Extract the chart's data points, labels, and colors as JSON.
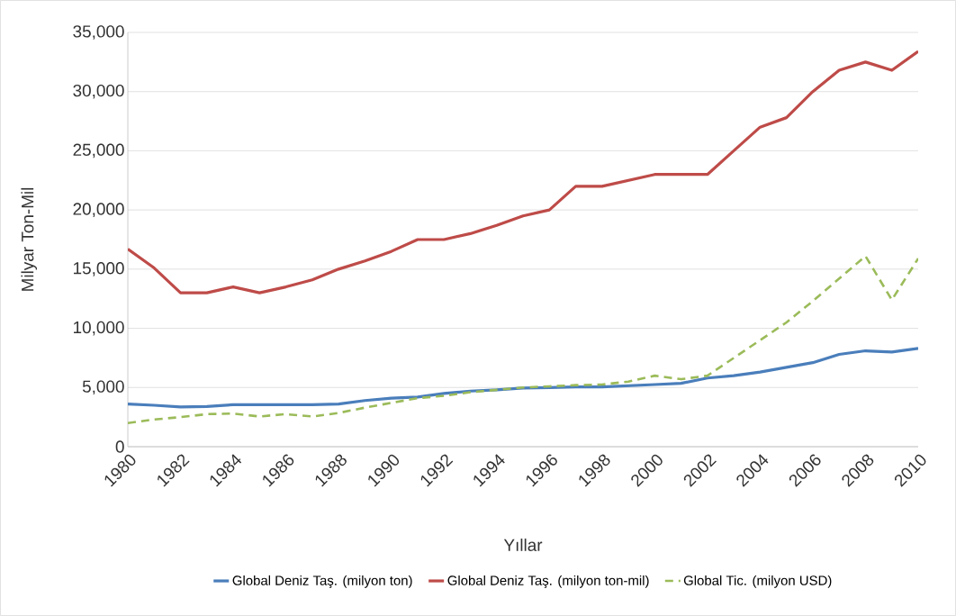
{
  "chart_data": {
    "type": "line",
    "xlabel": "Yıllar",
    "ylabel": "Milyar Ton-Mil",
    "x": [
      1980,
      1981,
      1982,
      1983,
      1984,
      1985,
      1986,
      1987,
      1988,
      1989,
      1990,
      1991,
      1992,
      1993,
      1994,
      1995,
      1996,
      1997,
      1998,
      1999,
      2000,
      2001,
      2002,
      2003,
      2004,
      2005,
      2006,
      2007,
      2008,
      2009,
      2010
    ],
    "series": [
      {
        "name": "Global Deniz Taş. (milyon ton)",
        "color": "#4a7ebb",
        "line_style": "solid",
        "values": [
          3600,
          3500,
          3350,
          3400,
          3550,
          3550,
          3550,
          3550,
          3600,
          3900,
          4100,
          4200,
          4500,
          4700,
          4800,
          4950,
          5000,
          5050,
          5050,
          5150,
          5250,
          5350,
          5800,
          6000,
          6300,
          6700,
          7100,
          7800,
          8100,
          8000,
          8300
        ]
      },
      {
        "name": "Global Deniz Taş. (milyon ton-mil)",
        "color": "#be4b48",
        "line_style": "solid",
        "values": [
          16700,
          15100,
          13000,
          13000,
          13500,
          13000,
          13500,
          14100,
          15000,
          15700,
          16500,
          17500,
          17500,
          18000,
          18700,
          19500,
          20000,
          22000,
          22000,
          22500,
          23000,
          23000,
          23000,
          25000,
          27000,
          27800,
          30000,
          31800,
          32500,
          31800,
          33400
        ]
      },
      {
        "name": "Global Tic. (milyon USD)",
        "color": "#9bbb59",
        "line_style": "dashed",
        "values": [
          2000,
          2300,
          2500,
          2750,
          2800,
          2550,
          2750,
          2550,
          2850,
          3300,
          3700,
          4100,
          4300,
          4600,
          4800,
          5000,
          5100,
          5200,
          5250,
          5500,
          6000,
          5700,
          6000,
          7500,
          9000,
          10500,
          12300,
          14200,
          16100,
          12400,
          15900
        ]
      }
    ],
    "xlim": [
      1980,
      2010
    ],
    "xticks": [
      1980,
      1982,
      1984,
      1986,
      1988,
      1990,
      1992,
      1994,
      1996,
      1998,
      2000,
      2002,
      2004,
      2006,
      2008,
      2010
    ],
    "ylim": [
      0,
      35000
    ],
    "yticks": [
      0,
      {
        "value": 5000,
        "label": "5,000"
      },
      {
        "value": 10000,
        "label": "10,000"
      },
      {
        "value": 15000,
        "label": "15,000"
      },
      {
        "value": 20000,
        "label": "20,000"
      },
      {
        "value": 25000,
        "label": "25,000"
      },
      {
        "value": 30000,
        "label": "30,000"
      },
      {
        "value": 35000,
        "label": "35,000"
      }
    ],
    "grid": "y",
    "legend": "bottom",
    "marker": "none"
  }
}
